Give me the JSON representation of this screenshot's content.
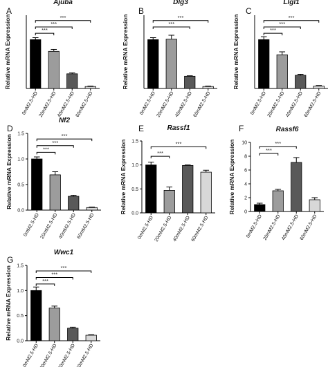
{
  "figure": {
    "ylabel": "Relative mRNA Expression",
    "categories": [
      "0mM2.5-HD",
      "20mM2.5-HD",
      "40mM2.5-HD",
      "60mM2.5-HD"
    ],
    "significance": "***",
    "bar_colors": [
      "#000000",
      "#9c9c9c",
      "#595959",
      "#d8d8d8"
    ]
  },
  "chart_data": [
    {
      "type": "bar",
      "panel": "A",
      "title": "Ajuba",
      "xlabel": "",
      "ylabel": "Relative mRNA Expression",
      "categories": [
        "0mM2.5-HD",
        "20mM2.5-HD",
        "40mM2.5-HD",
        "60mM2.5-HD"
      ],
      "values": [
        1.0,
        0.76,
        0.3,
        0.04
      ],
      "errors": [
        0.04,
        0.04,
        0.02,
        0.01
      ],
      "ylim": [
        0,
        1.5
      ],
      "yticks": [],
      "bar_colors": [
        "#000000",
        "#9c9c9c",
        "#595959",
        "#d8d8d8"
      ],
      "significance": [
        {
          "from": 0,
          "to": 1,
          "label": "***",
          "y": 1.13
        },
        {
          "from": 0,
          "to": 2,
          "label": "***",
          "y": 1.26
        },
        {
          "from": 0,
          "to": 3,
          "label": "***",
          "y": 1.39
        }
      ]
    },
    {
      "type": "bar",
      "panel": "B",
      "title": "Dlg3",
      "xlabel": "",
      "ylabel": "Relative mRNA Expression",
      "categories": [
        "0mM2.5-HD",
        "20mM2.5-HD",
        "40mM2.5-HD",
        "60mM2.5-HD"
      ],
      "values": [
        1.0,
        1.01,
        0.25,
        0.04
      ],
      "errors": [
        0.04,
        0.08,
        0.01,
        0.01
      ],
      "ylim": [
        0,
        1.5
      ],
      "yticks": [],
      "bar_colors": [
        "#000000",
        "#9c9c9c",
        "#595959",
        "#d8d8d8"
      ],
      "significance": [
        {
          "from": 0,
          "to": 2,
          "label": "***",
          "y": 1.26
        },
        {
          "from": 0,
          "to": 3,
          "label": "***",
          "y": 1.39
        }
      ]
    },
    {
      "type": "bar",
      "panel": "C",
      "title": "Llgl1",
      "xlabel": "",
      "ylabel": "Relative mRNA Expression",
      "categories": [
        "0mM2.5-HD",
        "20mM2.5-HD",
        "40mM2.5-HD",
        "60mM2.5-HD"
      ],
      "values": [
        1.0,
        0.69,
        0.27,
        0.05
      ],
      "errors": [
        0.06,
        0.06,
        0.02,
        0.01
      ],
      "ylim": [
        0,
        1.5
      ],
      "yticks": [],
      "bar_colors": [
        "#000000",
        "#9c9c9c",
        "#595959",
        "#d8d8d8"
      ],
      "significance": [
        {
          "from": 0,
          "to": 1,
          "label": "***",
          "y": 1.13
        },
        {
          "from": 0,
          "to": 2,
          "label": "***",
          "y": 1.26
        },
        {
          "from": 0,
          "to": 3,
          "label": "***",
          "y": 1.39
        }
      ]
    },
    {
      "type": "bar",
      "panel": "D",
      "title": "Nf2",
      "xlabel": "",
      "ylabel": "Relative mRNA Expression",
      "categories": [
        "0mM2.5-HD",
        "20mM2.5-HD",
        "40mM2.5-HD",
        "60mM2.5-HD"
      ],
      "values": [
        1.0,
        0.69,
        0.27,
        0.05
      ],
      "errors": [
        0.04,
        0.06,
        0.02,
        0.01
      ],
      "ylim": [
        0,
        1.5
      ],
      "yticks": [
        0.0,
        0.5,
        1.0,
        1.5
      ],
      "bar_colors": [
        "#000000",
        "#9c9c9c",
        "#595959",
        "#d8d8d8"
      ],
      "significance": [
        {
          "from": 0,
          "to": 1,
          "label": "***",
          "y": 1.13
        },
        {
          "from": 0,
          "to": 2,
          "label": "***",
          "y": 1.26
        },
        {
          "from": 0,
          "to": 3,
          "label": "***",
          "y": 1.39
        }
      ]
    },
    {
      "type": "bar",
      "panel": "E",
      "title": "Rassf1",
      "xlabel": "",
      "ylabel": "Relative mRNA Expression",
      "categories": [
        "0mM2.5-HD",
        "20mM2.5-HD",
        "40mM2.5-HD",
        "60mM2.5-HD"
      ],
      "values": [
        1.0,
        0.47,
        0.99,
        0.85
      ],
      "errors": [
        0.06,
        0.07,
        0.01,
        0.04
      ],
      "ylim": [
        0,
        1.5
      ],
      "yticks": [
        0.0,
        0.5,
        1.0,
        1.5
      ],
      "bar_colors": [
        "#000000",
        "#9c9c9c",
        "#595959",
        "#d8d8d8"
      ],
      "significance": [
        {
          "from": 0,
          "to": 1,
          "label": "***",
          "y": 1.18
        },
        {
          "from": 0,
          "to": 3,
          "label": "***",
          "y": 1.38
        }
      ]
    },
    {
      "type": "bar",
      "panel": "F",
      "title": "Rassf6",
      "xlabel": "",
      "ylabel": "Relative mRNA Expression",
      "categories": [
        "0mM2.5-HD",
        "20mM2.5-HD",
        "40mM2.5-HD",
        "60mM2.5-HD"
      ],
      "values": [
        1.0,
        3.0,
        7.1,
        1.7
      ],
      "errors": [
        0.2,
        0.2,
        0.7,
        0.3
      ],
      "ylim": [
        0,
        10
      ],
      "yticks": [
        0,
        2,
        4,
        6,
        8,
        10
      ],
      "bar_colors": [
        "#000000",
        "#9c9c9c",
        "#595959",
        "#d8d8d8"
      ],
      "significance": [
        {
          "from": 0,
          "to": 1,
          "label": "***",
          "y": 8.4
        },
        {
          "from": 0,
          "to": 2,
          "label": "***",
          "y": 9.4
        }
      ]
    },
    {
      "type": "bar",
      "panel": "G",
      "title": "Wwc1",
      "xlabel": "",
      "ylabel": "Relative mRNA Expression",
      "categories": [
        "0mM2.5-HD",
        "20mM2.5-HD",
        "40mM2.5-HD",
        "60mM2.5-HD"
      ],
      "values": [
        1.0,
        0.65,
        0.25,
        0.11
      ],
      "errors": [
        0.07,
        0.04,
        0.02,
        0.01
      ],
      "ylim": [
        0,
        1.5
      ],
      "yticks": [
        0.0,
        0.5,
        1.0,
        1.5
      ],
      "bar_colors": [
        "#000000",
        "#9c9c9c",
        "#595959",
        "#d8d8d8"
      ],
      "significance": [
        {
          "from": 0,
          "to": 1,
          "label": "***",
          "y": 1.13
        },
        {
          "from": 0,
          "to": 2,
          "label": "***",
          "y": 1.26
        },
        {
          "from": 0,
          "to": 3,
          "label": "***",
          "y": 1.39
        }
      ]
    }
  ]
}
